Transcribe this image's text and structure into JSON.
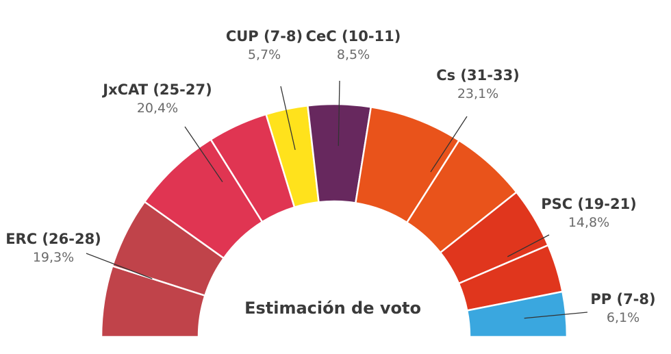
{
  "chart_data": {
    "type": "pie",
    "style": "half-donut",
    "title": "Estimación de voto",
    "slices": [
      {
        "party": "ERC",
        "seats": "(26-28)",
        "value": 19.3,
        "pct": "19,3%",
        "color": "#c0434a",
        "split_at": 0.5,
        "label_side": "left"
      },
      {
        "party": "JxCAT",
        "seats": "(25-27)",
        "value": 20.4,
        "pct": "20,4%",
        "color": "#e03552",
        "split_at": 0.6,
        "label_side": "left"
      },
      {
        "party": "CUP",
        "seats": "(7-8)",
        "value": 5.7,
        "pct": "5,7%",
        "color": "#ffe21c",
        "split_at": null,
        "label_side": "center"
      },
      {
        "party": "CeC",
        "seats": "(10-11)",
        "value": 8.5,
        "pct": "8,5%",
        "color": "#67285e",
        "split_at": null,
        "label_side": "center"
      },
      {
        "party": "Cs",
        "seats": "(31-33)",
        "value": 23.1,
        "pct": "23,1%",
        "color": "#e9531b",
        "split_at": 0.55,
        "label_side": "right"
      },
      {
        "party": "PSC",
        "seats": "(19-21)",
        "value": 14.8,
        "pct": "14,8%",
        "color": "#e0361d",
        "split_at": 0.56,
        "label_side": "right"
      },
      {
        "party": "PP",
        "seats": "(7-8)",
        "value": 6.1,
        "pct": "6,1%",
        "color": "#3aa7df",
        "split_at": null,
        "label_side": "right"
      }
    ]
  }
}
